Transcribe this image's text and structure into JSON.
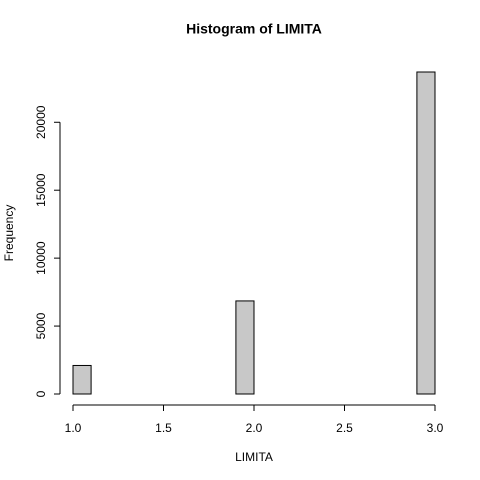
{
  "chart_data": {
    "type": "histogram",
    "title": "Histogram of LIMITA",
    "x_label": "LIMITA",
    "y_label": "Frequency",
    "bins": [
      1.0,
      1.1,
      1.2,
      1.3,
      1.4,
      1.5,
      1.6,
      1.7,
      1.8,
      1.9,
      2.0,
      2.1,
      2.2,
      2.3,
      2.4,
      2.5,
      2.6,
      2.7,
      2.8,
      2.9,
      3.0
    ],
    "values": [
      2100,
      0,
      0,
      0,
      0,
      0,
      0,
      0,
      0,
      6850,
      0,
      0,
      0,
      0,
      0,
      0,
      0,
      0,
      0,
      23700
    ],
    "color": "#c8c8c8",
    "xlim": [
      1.0,
      3.0
    ],
    "xticks": [
      {
        "value": 1.0,
        "label": "1.0"
      },
      {
        "value": 1.5,
        "label": "1.5"
      },
      {
        "value": 2.0,
        "label": "2.0"
      },
      {
        "value": 2.5,
        "label": "2.5"
      },
      {
        "value": 3.0,
        "label": "3.0"
      }
    ],
    "ylim": [
      0,
      23700
    ],
    "yticks": [
      0,
      5000,
      10000,
      15000,
      20000
    ]
  }
}
